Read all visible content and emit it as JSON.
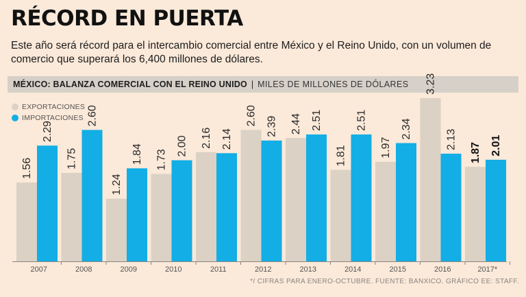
{
  "header": {
    "title": "RÉCORD EN PUERTA",
    "subtitle": "Este año será récord para el intercambio comercial entre México y el Reino Unido, con un volumen de comercio que superará los 6,400 millones de dólares."
  },
  "band": {
    "title": "MÉXICO: BALANZA COMERCIAL CON EL REINO UNIDO",
    "separator": "|",
    "units": "MILES DE MILLONES DE DÓLARES"
  },
  "colors": {
    "exports": "#dbd1c5",
    "imports": "#12aee5",
    "background": "#fbe9d9",
    "axis": "#8a8580"
  },
  "chart_data": {
    "type": "bar",
    "title": "MÉXICO: BALANZA COMERCIAL CON EL REINO UNIDO",
    "ylabel": "MILES DE MILLONES DE DÓLARES",
    "xlabel": "",
    "ylim": [
      0,
      3.23
    ],
    "grid": false,
    "legend": "top-left",
    "categories": [
      "2007",
      "2008",
      "2009",
      "2010",
      "2011",
      "2012",
      "2013",
      "2014",
      "2015",
      "2016",
      "2017*"
    ],
    "series": [
      {
        "name": "EXPORTACIONES",
        "values": [
          1.56,
          1.75,
          1.24,
          1.73,
          2.16,
          2.6,
          2.44,
          1.81,
          1.97,
          3.23,
          1.87
        ],
        "labels": [
          "1.56",
          "1.75",
          "1.24",
          "1.73",
          "2.16",
          "2.60",
          "2.44",
          "1.81",
          "1.97",
          "3.23",
          "1.87"
        ]
      },
      {
        "name": "IMPORTACIONES",
        "values": [
          2.29,
          2.6,
          1.84,
          2.0,
          2.14,
          2.39,
          2.51,
          2.51,
          2.34,
          2.13,
          2.01
        ],
        "labels": [
          "2.29",
          "2.60",
          "1.84",
          "2.00",
          "2.14",
          "2.39",
          "2.51",
          "2.51",
          "2.34",
          "2.13",
          "2.01"
        ]
      }
    ],
    "emphasized_category": "2017*"
  },
  "footer": {
    "note": "*/ CIFRAS PARA ENERO-OCTUBRE.  FUENTE: BANXICO. GRÁFICO EE: STAFF."
  }
}
